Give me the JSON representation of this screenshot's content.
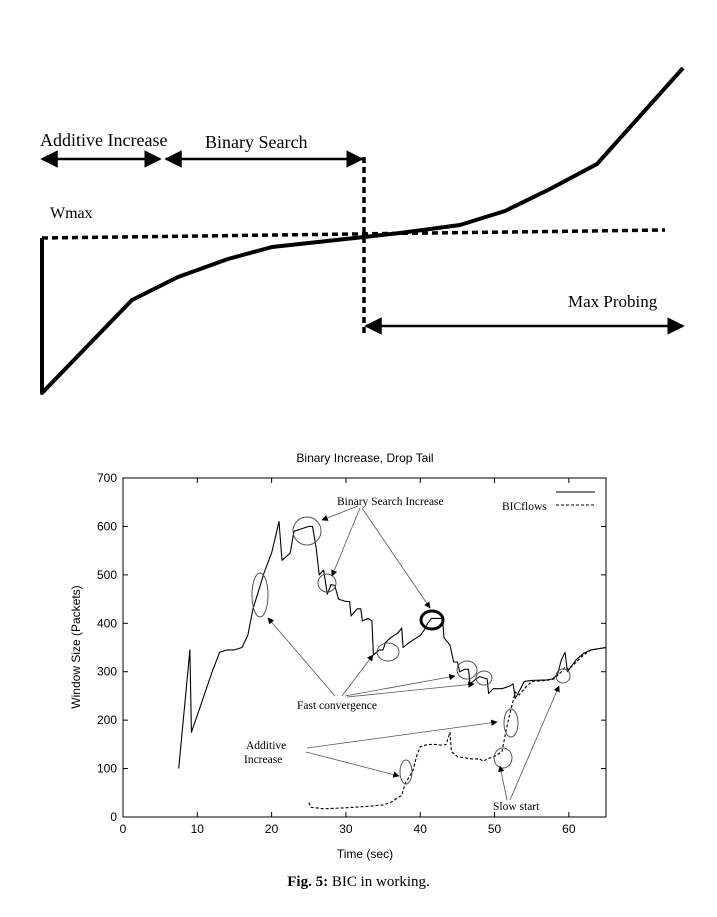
{
  "diagram": {
    "additive_increase_label": "Additive Increase",
    "binary_search_label": "Binary Search",
    "wmax_label": "Wmax",
    "max_probing_label": "Max Probing"
  },
  "caption": {
    "prefix": "Fig. 5:",
    "text": " BIC in working."
  },
  "chart_data": {
    "type": "line",
    "title": "Binary Increase, Drop Tail",
    "xlabel": "Time (sec)",
    "ylabel": "Window Size (Packets)",
    "xlim": [
      0,
      65
    ],
    "ylim": [
      0,
      700
    ],
    "xticks": [
      0,
      10,
      20,
      30,
      40,
      50,
      60
    ],
    "yticks": [
      0,
      100,
      200,
      300,
      400,
      500,
      600,
      700
    ],
    "legend": {
      "label": "BICflows",
      "placement": "top-right"
    },
    "series": [
      {
        "style": "solid",
        "points": [
          [
            7.5,
            100
          ],
          [
            9,
            345
          ],
          [
            9.2,
            175
          ],
          [
            10,
            210
          ],
          [
            11,
            255
          ],
          [
            12,
            300
          ],
          [
            13,
            340
          ],
          [
            14,
            345
          ],
          [
            15,
            345
          ],
          [
            16,
            350
          ],
          [
            16.8,
            375
          ],
          [
            17.5,
            430
          ],
          [
            18.3,
            470
          ],
          [
            19,
            505
          ],
          [
            20,
            545
          ],
          [
            21,
            610
          ],
          [
            21.4,
            530
          ],
          [
            22.5,
            545
          ],
          [
            23,
            590
          ],
          [
            24,
            595
          ],
          [
            25,
            600
          ],
          [
            25.5,
            600
          ],
          [
            26,
            555
          ],
          [
            26.4,
            500
          ],
          [
            27,
            510
          ],
          [
            27.5,
            460
          ],
          [
            28,
            480
          ],
          [
            28.5,
            478
          ],
          [
            29,
            450
          ],
          [
            30,
            445
          ],
          [
            30.5,
            445
          ],
          [
            30.7,
            415
          ],
          [
            31.5,
            430
          ],
          [
            32,
            430
          ],
          [
            32.2,
            405
          ],
          [
            33,
            410
          ],
          [
            33.5,
            405
          ],
          [
            33.7,
            335
          ],
          [
            34.5,
            345
          ],
          [
            35,
            345
          ],
          [
            35.3,
            360
          ],
          [
            36,
            370
          ],
          [
            37,
            380
          ],
          [
            37.5,
            390
          ],
          [
            37.7,
            350
          ],
          [
            38.5,
            360
          ],
          [
            39,
            365
          ],
          [
            40,
            375
          ],
          [
            40.5,
            385
          ],
          [
            41,
            400
          ],
          [
            41.5,
            410
          ],
          [
            42,
            410
          ],
          [
            43,
            410
          ],
          [
            43.2,
            370
          ],
          [
            44,
            355
          ],
          [
            44.5,
            320
          ],
          [
            45,
            320
          ],
          [
            45.3,
            300
          ],
          [
            46,
            305
          ],
          [
            46.5,
            305
          ],
          [
            46.7,
            275
          ],
          [
            47.5,
            285
          ],
          [
            48,
            290
          ],
          [
            49,
            285
          ],
          [
            49.2,
            255
          ],
          [
            49.8,
            265
          ],
          [
            51,
            265
          ],
          [
            52,
            270
          ],
          [
            52.5,
            275
          ],
          [
            52.8,
            245
          ],
          [
            53.5,
            265
          ],
          [
            54,
            280
          ],
          [
            55,
            282
          ],
          [
            57,
            283
          ],
          [
            57.8,
            285
          ],
          [
            58.5,
            295
          ],
          [
            59,
            325
          ],
          [
            59.5,
            340
          ],
          [
            59.8,
            300
          ],
          [
            61,
            325
          ],
          [
            62,
            338
          ],
          [
            63,
            345
          ],
          [
            65,
            350
          ]
        ]
      },
      {
        "style": "dashed",
        "points": [
          [
            25,
            30
          ],
          [
            25.3,
            20
          ],
          [
            27,
            17
          ],
          [
            30,
            19
          ],
          [
            33,
            22
          ],
          [
            35,
            25
          ],
          [
            36,
            30
          ],
          [
            37.5,
            45
          ],
          [
            38,
            70
          ],
          [
            39,
            95
          ],
          [
            39.5,
            125
          ],
          [
            40,
            145
          ],
          [
            41,
            150
          ],
          [
            42,
            150
          ],
          [
            43,
            148
          ],
          [
            43.5,
            150
          ],
          [
            44,
            175
          ],
          [
            44.2,
            135
          ],
          [
            45,
            125
          ],
          [
            46,
            122
          ],
          [
            47,
            120
          ],
          [
            48,
            120
          ],
          [
            48.5,
            115
          ],
          [
            49,
            120
          ],
          [
            50,
            125
          ],
          [
            51,
            135
          ],
          [
            51.5,
            175
          ],
          [
            52,
            210
          ],
          [
            52.5,
            240
          ],
          [
            52.8,
            258
          ],
          [
            53.3,
            252
          ],
          [
            54,
            265
          ],
          [
            55,
            280
          ],
          [
            57,
            282
          ],
          [
            58,
            285
          ],
          [
            59,
            300
          ],
          [
            59.5,
            310
          ],
          [
            60,
            305
          ],
          [
            61,
            320
          ],
          [
            62,
            335
          ],
          [
            63,
            345
          ],
          [
            65,
            350
          ]
        ]
      }
    ],
    "annotations": [
      {
        "text": "Binary Search  Increase"
      },
      {
        "text": "Fast convergence"
      },
      {
        "text": "Additive"
      },
      {
        "text": "Increase"
      },
      {
        "text": "Slow start"
      }
    ]
  }
}
